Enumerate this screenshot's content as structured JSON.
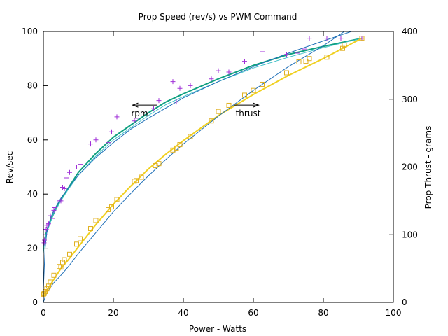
{
  "chart_data": {
    "type": "scatter",
    "title": "Prop Speed (rev/s) vs PWM Command",
    "xlabel": "Power - Watts",
    "ylabel": "Rev/sec",
    "y2label": "Prop Thrust - grams",
    "xlim": [
      0,
      100
    ],
    "ylim": [
      0,
      100
    ],
    "y2lim": [
      0,
      400
    ],
    "xticks": [
      0,
      20,
      40,
      60,
      80,
      100
    ],
    "yticks": [
      0,
      20,
      40,
      60,
      80,
      100
    ],
    "y2ticks": [
      0,
      100,
      200,
      300,
      400
    ],
    "grid": false,
    "annotations": [
      {
        "text": "rpm",
        "x": 27.5,
        "y": 70,
        "arrow": "left"
      },
      {
        "text": "thrust",
        "x": 58.5,
        "y": 70,
        "arrow": "right"
      }
    ],
    "series": [
      {
        "axis": "left",
        "marker": "plus",
        "color": "#a030d8",
        "points": [
          [
            0.2,
            22
          ],
          [
            0.3,
            23
          ],
          [
            0.5,
            25
          ],
          [
            0.8,
            27
          ],
          [
            1.0,
            28.5
          ],
          [
            1.5,
            29
          ],
          [
            2.0,
            32
          ],
          [
            2.5,
            31
          ],
          [
            3.0,
            34
          ],
          [
            3.3,
            35
          ],
          [
            4.5,
            37.5
          ],
          [
            5.0,
            37.5
          ],
          [
            5.5,
            42.5
          ],
          [
            6.0,
            42
          ],
          [
            6.5,
            46
          ],
          [
            7.5,
            48
          ],
          [
            9.5,
            50
          ],
          [
            10.5,
            51
          ],
          [
            13.5,
            58.5
          ],
          [
            15,
            60
          ],
          [
            18.5,
            59
          ],
          [
            19.5,
            63
          ],
          [
            21,
            68.5
          ],
          [
            26,
            67
          ],
          [
            26.5,
            68
          ],
          [
            33,
            74.5
          ],
          [
            31.5,
            71.5
          ],
          [
            37,
            81.5
          ],
          [
            38,
            74
          ],
          [
            39,
            79
          ],
          [
            42,
            80
          ],
          [
            48,
            82.5
          ],
          [
            50,
            85.5
          ],
          [
            53,
            85
          ],
          [
            57.5,
            89
          ],
          [
            62.5,
            92.5
          ],
          [
            69.5,
            91.5
          ],
          [
            72.5,
            92
          ],
          [
            74.5,
            93.5
          ],
          [
            76,
            97.5
          ],
          [
            81,
            97.5
          ],
          [
            85,
            97.5
          ],
          [
            91,
            97.5
          ]
        ]
      },
      {
        "axis": "right",
        "marker": "square",
        "color": "#e0b020",
        "points": [
          [
            0,
            12
          ],
          [
            0.2,
            13
          ],
          [
            0.5,
            16
          ],
          [
            1.0,
            20
          ],
          [
            1.5,
            24
          ],
          [
            2,
            30
          ],
          [
            3,
            40
          ],
          [
            4.5,
            53
          ],
          [
            5,
            52
          ],
          [
            5.5,
            59
          ],
          [
            6,
            63
          ],
          [
            7.5,
            71
          ],
          [
            9.5,
            86
          ],
          [
            10.5,
            94
          ],
          [
            13.5,
            109
          ],
          [
            15,
            121
          ],
          [
            18.5,
            137
          ],
          [
            19.5,
            141
          ],
          [
            21,
            152
          ],
          [
            26,
            179
          ],
          [
            26.5,
            180
          ],
          [
            28,
            185
          ],
          [
            32,
            202
          ],
          [
            33,
            205
          ],
          [
            37,
            225
          ],
          [
            38,
            228
          ],
          [
            39,
            233
          ],
          [
            42,
            245
          ],
          [
            48,
            268
          ],
          [
            50,
            282
          ],
          [
            53,
            291
          ],
          [
            57.5,
            306
          ],
          [
            60,
            313
          ],
          [
            62.5,
            322
          ],
          [
            69.5,
            339
          ],
          [
            73,
            355
          ],
          [
            75,
            356
          ],
          [
            76,
            360
          ],
          [
            81,
            362
          ],
          [
            85.5,
            375
          ],
          [
            86,
            380
          ],
          [
            91,
            390
          ]
        ]
      }
    ],
    "fits": [
      {
        "axis": "left",
        "color": "#10a080",
        "width": 2,
        "points": [
          [
            0,
            20
          ],
          [
            0.5,
            24
          ],
          [
            1,
            26.5
          ],
          [
            2,
            30
          ],
          [
            3,
            33
          ],
          [
            5,
            38
          ],
          [
            7,
            42
          ],
          [
            10,
            48
          ],
          [
            15,
            55
          ],
          [
            20,
            61
          ],
          [
            25,
            65.5
          ],
          [
            30,
            70
          ],
          [
            35,
            74
          ],
          [
            40,
            77
          ],
          [
            50,
            82.5
          ],
          [
            60,
            87.5
          ],
          [
            70,
            91.5
          ],
          [
            80,
            94.5
          ],
          [
            91,
            97.5
          ]
        ]
      },
      {
        "axis": "left",
        "color": "#40c0c8",
        "width": 1,
        "points": [
          [
            0,
            18
          ],
          [
            0.5,
            24
          ],
          [
            1,
            26
          ],
          [
            2,
            29.5
          ],
          [
            3,
            33
          ],
          [
            5,
            37.5
          ],
          [
            7,
            41.5
          ],
          [
            10,
            47
          ],
          [
            15,
            54
          ],
          [
            20,
            60
          ],
          [
            25,
            64.5
          ],
          [
            30,
            69
          ],
          [
            35,
            73
          ],
          [
            40,
            76
          ],
          [
            50,
            81.5
          ],
          [
            60,
            86.5
          ],
          [
            70,
            90.5
          ],
          [
            80,
            94
          ],
          [
            91,
            97.5
          ]
        ]
      },
      {
        "axis": "left",
        "color": "#2070b8",
        "width": 1,
        "points": [
          [
            0,
            5
          ],
          [
            0.5,
            20
          ],
          [
            1,
            26
          ],
          [
            2,
            31
          ],
          [
            3,
            34
          ],
          [
            5,
            38.5
          ],
          [
            7,
            42
          ],
          [
            10,
            47
          ],
          [
            15,
            53.5
          ],
          [
            20,
            59
          ],
          [
            25,
            64
          ],
          [
            30,
            68
          ],
          [
            40,
            75.5
          ],
          [
            50,
            81.5
          ],
          [
            60,
            87
          ],
          [
            70,
            92
          ],
          [
            80,
            96.5
          ],
          [
            88,
            100
          ]
        ]
      },
      {
        "axis": "right",
        "color": "#f0d020",
        "width": 2,
        "points": [
          [
            0,
            10
          ],
          [
            0.5,
            13
          ],
          [
            1,
            18
          ],
          [
            2,
            26
          ],
          [
            3,
            34
          ],
          [
            5,
            50
          ],
          [
            7,
            62
          ],
          [
            10,
            82
          ],
          [
            15,
            115
          ],
          [
            20,
            145
          ],
          [
            25,
            172
          ],
          [
            30,
            197
          ],
          [
            35,
            219
          ],
          [
            40,
            239
          ],
          [
            50,
            276
          ],
          [
            60,
            307
          ],
          [
            70,
            335
          ],
          [
            80,
            360
          ],
          [
            91,
            390
          ]
        ]
      },
      {
        "axis": "right",
        "color": "#2070b8",
        "width": 1,
        "points": [
          [
            0,
            0
          ],
          [
            0.5,
            8
          ],
          [
            1,
            14
          ],
          [
            2,
            22
          ],
          [
            3,
            29
          ],
          [
            5,
            40
          ],
          [
            7,
            52
          ],
          [
            10,
            72
          ],
          [
            15,
            103
          ],
          [
            20,
            134
          ],
          [
            25,
            161
          ],
          [
            30,
            187
          ],
          [
            35,
            211
          ],
          [
            40,
            234
          ],
          [
            50,
            275
          ],
          [
            60,
            313
          ],
          [
            70,
            348
          ],
          [
            80,
            379
          ],
          [
            86,
            400
          ]
        ]
      }
    ]
  }
}
